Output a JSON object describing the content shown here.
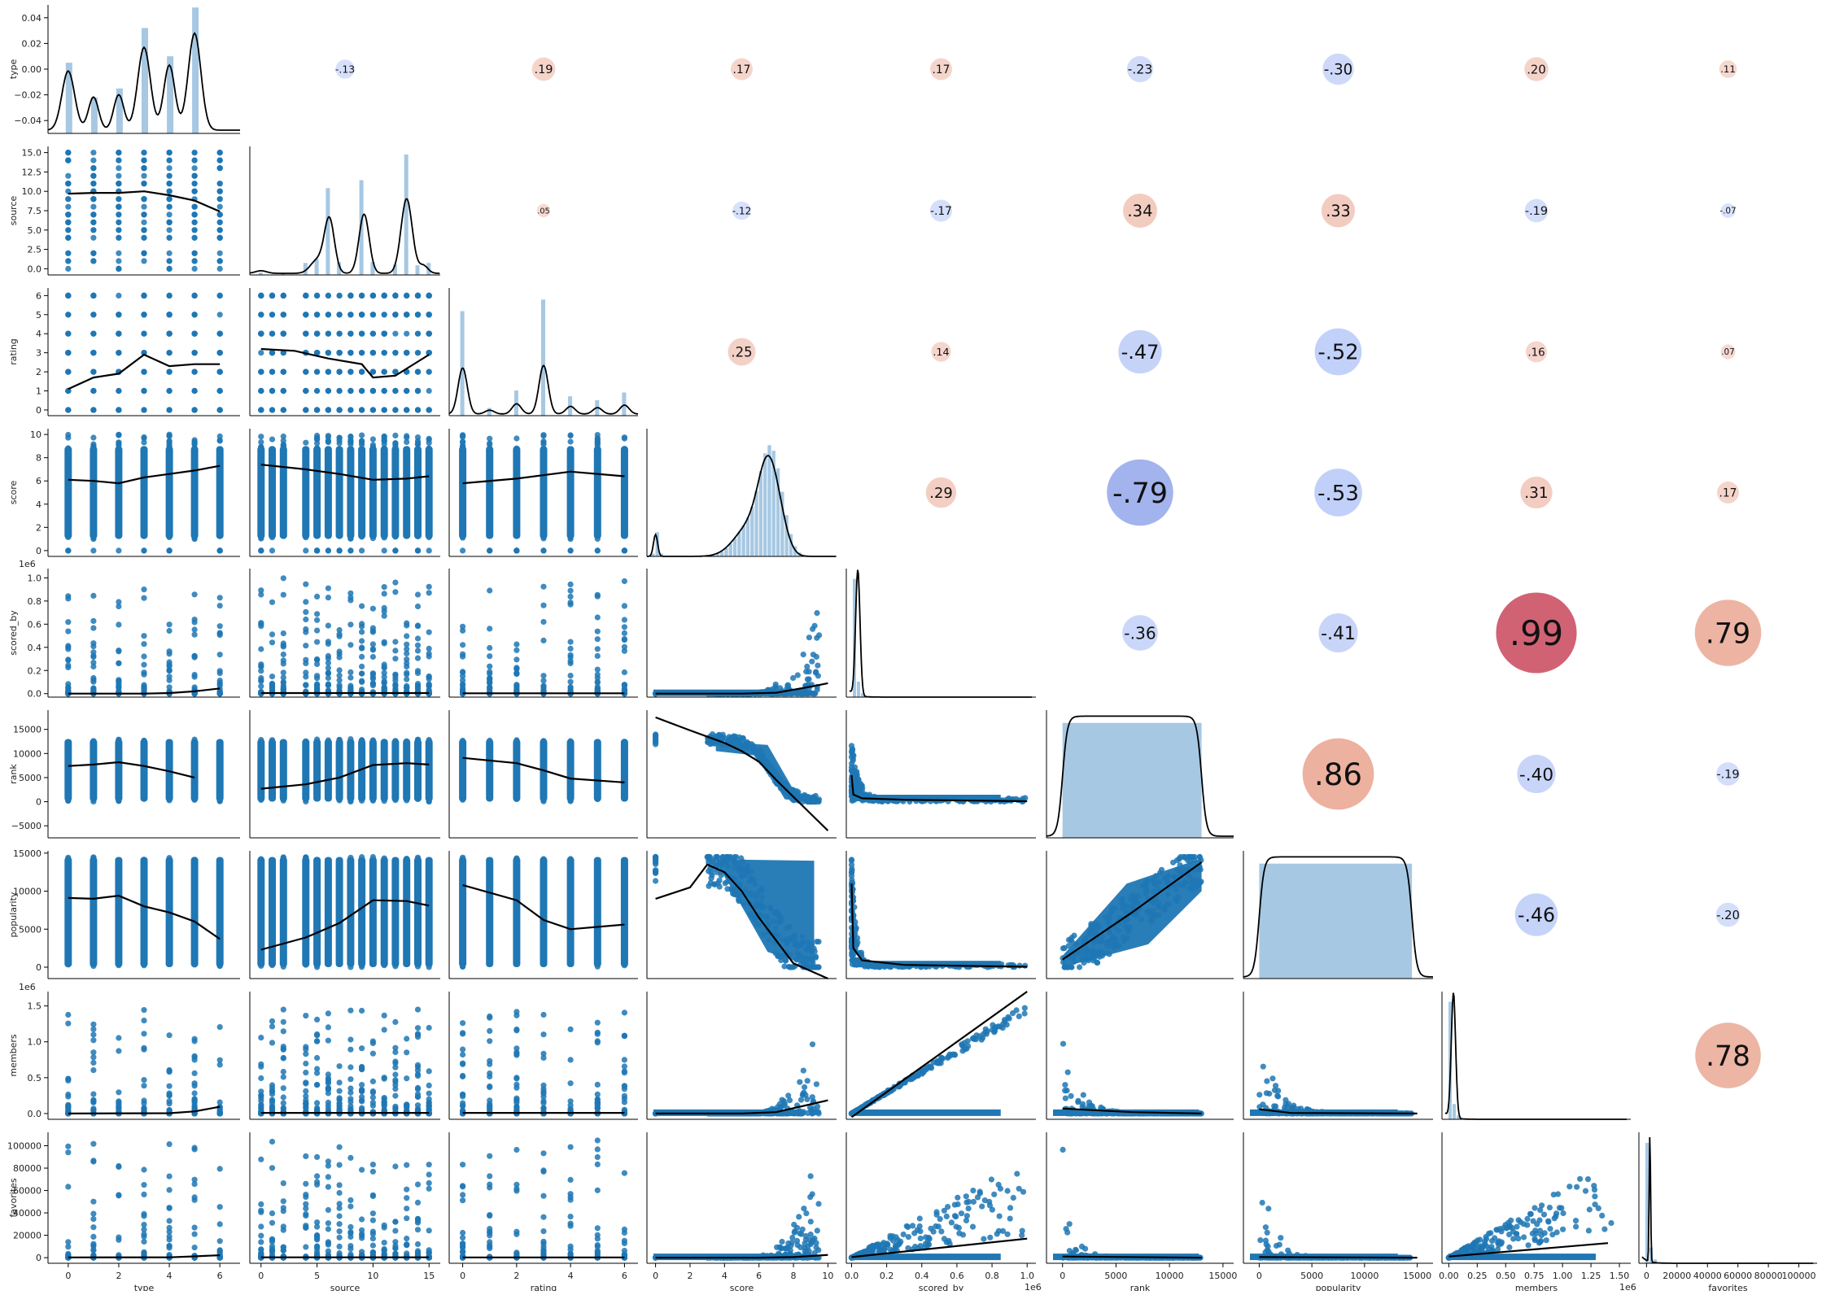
{
  "variables": [
    "type",
    "source",
    "rating",
    "score",
    "scored_by",
    "rank",
    "popularity",
    "members",
    "favorites"
  ],
  "chart_data": {
    "type": "pairplot",
    "diagonal": "histogram with kde",
    "lower": "scatter with lowess line",
    "upper": "correlation circles",
    "colors": {
      "points": "#1f77b4",
      "hist": "#a6c8e3",
      "line": "#000000",
      "positive": "#e8a08a",
      "negative": "#9fb6f5",
      "strong_positive": "#cc4f63",
      "strong_negative": "#8a9ee8"
    },
    "diag_ticks": {
      "type": [
        "0.04",
        "0.02",
        "0.00",
        "−0.02",
        "−0.04"
      ]
    },
    "row_ticks": {
      "source": [
        "15.0",
        "12.5",
        "10.0",
        "7.5",
        "5.0",
        "2.5",
        "0.0"
      ],
      "rating": [
        "6",
        "5",
        "4",
        "3",
        "2",
        "1",
        "0"
      ],
      "score": [
        "10",
        "8",
        "6",
        "4",
        "2",
        "0"
      ],
      "scored_by": [
        "1.0",
        "0.8",
        "0.6",
        "0.4",
        "0.2",
        "0.0"
      ],
      "rank": [
        "15000",
        "10000",
        "5000",
        "0",
        "−5000"
      ],
      "popularity": [
        "15000",
        "10000",
        "5000",
        "0"
      ],
      "members": [
        "1.5",
        "1.0",
        "0.5",
        "0.0"
      ],
      "favorites": [
        "100000",
        "80000",
        "60000",
        "40000",
        "20000",
        "0"
      ]
    },
    "offsets": {
      "scored_by": "1e6",
      "members": "1e6"
    },
    "col_ticks": {
      "type": [
        "0",
        "2",
        "4",
        "6"
      ],
      "source": [
        "0",
        "5",
        "10",
        "15"
      ],
      "rating": [
        "0",
        "2",
        "4",
        "6"
      ],
      "score": [
        "0",
        "2",
        "4",
        "6",
        "8",
        "10"
      ],
      "scored_by": [
        "0.0",
        "0.2",
        "0.4",
        "0.6",
        "0.8",
        "1.0"
      ],
      "rank": [
        "0",
        "5000",
        "10000",
        "15000"
      ],
      "popularity": [
        "0",
        "5000",
        "10000",
        "15000"
      ],
      "members": [
        "0.00",
        "0.25",
        "0.50",
        "0.75",
        "1.00",
        "1.25",
        "1.50"
      ],
      "favorites": [
        "0",
        "20000",
        "40000",
        "60000",
        "80000",
        "100000"
      ]
    },
    "col_offsets": {
      "scored_by": "1e6",
      "members": "1e6"
    },
    "correlations": [
      {
        "row": "type",
        "col": "source",
        "value": -0.13,
        "label": "-.13"
      },
      {
        "row": "type",
        "col": "rating",
        "value": 0.19,
        "label": ".19"
      },
      {
        "row": "type",
        "col": "score",
        "value": 0.17,
        "label": ".17"
      },
      {
        "row": "type",
        "col": "scored_by",
        "value": 0.17,
        "label": ".17"
      },
      {
        "row": "type",
        "col": "rank",
        "value": -0.23,
        "label": "-.23"
      },
      {
        "row": "type",
        "col": "popularity",
        "value": -0.3,
        "label": "-.30"
      },
      {
        "row": "type",
        "col": "members",
        "value": 0.2,
        "label": ".20"
      },
      {
        "row": "type",
        "col": "favorites",
        "value": 0.11,
        "label": ".11"
      },
      {
        "row": "source",
        "col": "rating",
        "value": 0.05,
        "label": ".05"
      },
      {
        "row": "source",
        "col": "score",
        "value": -0.12,
        "label": "-.12"
      },
      {
        "row": "source",
        "col": "scored_by",
        "value": -0.17,
        "label": "-.17"
      },
      {
        "row": "source",
        "col": "rank",
        "value": 0.34,
        "label": ".34"
      },
      {
        "row": "source",
        "col": "popularity",
        "value": 0.33,
        "label": ".33"
      },
      {
        "row": "source",
        "col": "members",
        "value": -0.19,
        "label": "-.19"
      },
      {
        "row": "source",
        "col": "favorites",
        "value": -0.07,
        "label": "-.07"
      },
      {
        "row": "rating",
        "col": "score",
        "value": 0.25,
        "label": ".25"
      },
      {
        "row": "rating",
        "col": "scored_by",
        "value": 0.14,
        "label": ".14"
      },
      {
        "row": "rating",
        "col": "rank",
        "value": -0.47,
        "label": "-.47"
      },
      {
        "row": "rating",
        "col": "popularity",
        "value": -0.52,
        "label": "-.52"
      },
      {
        "row": "rating",
        "col": "members",
        "value": 0.16,
        "label": ".16"
      },
      {
        "row": "rating",
        "col": "favorites",
        "value": 0.07,
        "label": ".07"
      },
      {
        "row": "score",
        "col": "scored_by",
        "value": 0.29,
        "label": ".29"
      },
      {
        "row": "score",
        "col": "rank",
        "value": -0.79,
        "label": "-.79"
      },
      {
        "row": "score",
        "col": "popularity",
        "value": -0.53,
        "label": "-.53"
      },
      {
        "row": "score",
        "col": "members",
        "value": 0.31,
        "label": ".31"
      },
      {
        "row": "score",
        "col": "favorites",
        "value": 0.17,
        "label": ".17"
      },
      {
        "row": "scored_by",
        "col": "rank",
        "value": -0.36,
        "label": "-.36"
      },
      {
        "row": "scored_by",
        "col": "popularity",
        "value": -0.41,
        "label": "-.41"
      },
      {
        "row": "scored_by",
        "col": "members",
        "value": 0.99,
        "label": ".99"
      },
      {
        "row": "scored_by",
        "col": "favorites",
        "value": 0.79,
        "label": ".79"
      },
      {
        "row": "rank",
        "col": "popularity",
        "value": 0.86,
        "label": ".86"
      },
      {
        "row": "rank",
        "col": "members",
        "value": -0.4,
        "label": "-.40"
      },
      {
        "row": "rank",
        "col": "favorites",
        "value": -0.19,
        "label": "-.19"
      },
      {
        "row": "popularity",
        "col": "members",
        "value": -0.46,
        "label": "-.46"
      },
      {
        "row": "popularity",
        "col": "favorites",
        "value": -0.2,
        "label": "-.20"
      },
      {
        "row": "members",
        "col": "favorites",
        "value": 0.78,
        "label": ".78"
      }
    ],
    "ranges": {
      "type": [
        -0.8,
        6.8
      ],
      "source": [
        -1,
        16
      ],
      "rating": [
        -0.5,
        6.5
      ],
      "score": [
        -0.5,
        10.5
      ],
      "scored_by": [
        -30000,
        1050000
      ],
      "rank": [
        -1500,
        16000
      ],
      "popularity": [
        -1500,
        16500
      ],
      "members": [
        -60000,
        1600000
      ],
      "favorites": [
        -5000,
        112000
      ]
    },
    "row_ranges": {
      "type": [
        -0.05,
        0.05
      ],
      "source": [
        -0.8,
        15.8
      ],
      "rating": [
        -0.3,
        6.4
      ],
      "score": [
        -0.5,
        10.5
      ],
      "scored_by": [
        -30000,
        1080000
      ],
      "rank": [
        -7500,
        19000
      ],
      "popularity": [
        -1500,
        15300
      ],
      "members": [
        -80000,
        1700000
      ],
      "favorites": [
        -5000,
        112000
      ]
    },
    "category_levels": {
      "type": [
        0,
        1,
        2,
        3,
        4,
        5,
        6
      ],
      "source": [
        0,
        1,
        2,
        4,
        5,
        6,
        7,
        8,
        9,
        10,
        11,
        12,
        13,
        14,
        15
      ],
      "rating": [
        0,
        1,
        2,
        3,
        4,
        5,
        6
      ]
    },
    "diag_hist": {
      "type": {
        "bins": [
          0,
          1,
          2,
          3,
          4,
          5,
          6
        ],
        "density": [
          0.009,
          -0.034,
          -0.027,
          0.034,
          -0.006,
          0.05,
          -0.05
        ]
      },
      "source": {
        "bins": [
          0,
          2,
          4,
          5,
          6,
          7,
          9,
          10,
          12,
          13,
          14,
          15
        ],
        "density": [
          0.3,
          0.2,
          1.5,
          2.0,
          10.8,
          1.6,
          11.8,
          1.6,
          1.3,
          15.0,
          1.2,
          1.5
        ]
      },
      "rating": {
        "bins": [
          0,
          1,
          2,
          3,
          4,
          5,
          6
        ],
        "density": [
          5.4,
          0.4,
          1.3,
          6.0,
          1.0,
          0.8,
          1.2
        ]
      }
    },
    "lowess": {
      "type|source": [
        [
          0,
          9.7
        ],
        [
          1,
          9.8
        ],
        [
          2,
          9.8
        ],
        [
          3,
          10.0
        ],
        [
          4,
          9.5
        ],
        [
          5,
          8.8
        ],
        [
          6,
          7.4
        ]
      ],
      "type|rating": [
        [
          0,
          1.1
        ],
        [
          1,
          1.7
        ],
        [
          2,
          1.9
        ],
        [
          3,
          2.9
        ],
        [
          4,
          2.3
        ],
        [
          5,
          2.4
        ],
        [
          6,
          2.4
        ]
      ],
      "type|score": [
        [
          0,
          6.1
        ],
        [
          1,
          6.0
        ],
        [
          2,
          5.8
        ],
        [
          3,
          6.3
        ],
        [
          4,
          6.6
        ],
        [
          5,
          6.9
        ],
        [
          6,
          7.3
        ]
      ],
      "type|scored_by": [
        [
          0,
          0
        ],
        [
          3,
          0
        ],
        [
          4,
          5000
        ],
        [
          5,
          20000
        ],
        [
          6,
          45000
        ]
      ],
      "type|rank": [
        [
          0,
          7400
        ],
        [
          1,
          7700
        ],
        [
          2,
          8200
        ],
        [
          3,
          7400
        ],
        [
          4,
          6300
        ],
        [
          5,
          5000
        ]
      ],
      "type|popularity": [
        [
          0,
          9100
        ],
        [
          1,
          9000
        ],
        [
          2,
          9400
        ],
        [
          3,
          8000
        ],
        [
          4,
          7200
        ],
        [
          5,
          6000
        ],
        [
          6,
          3700
        ]
      ],
      "type|members": [
        [
          0,
          0
        ],
        [
          4,
          5000
        ],
        [
          5,
          30000
        ],
        [
          6,
          95000
        ]
      ],
      "type|favorites": [
        [
          0,
          200
        ],
        [
          4,
          300
        ],
        [
          5,
          1200
        ],
        [
          6,
          2200
        ]
      ],
      "source|rating": [
        [
          0,
          3.2
        ],
        [
          3,
          3.1
        ],
        [
          6,
          2.7
        ],
        [
          9,
          2.4
        ],
        [
          10,
          1.7
        ],
        [
          12,
          1.8
        ],
        [
          15,
          2.9
        ]
      ],
      "source|score": [
        [
          0,
          7.4
        ],
        [
          4,
          7.0
        ],
        [
          7,
          6.6
        ],
        [
          10,
          6.1
        ],
        [
          13,
          6.2
        ],
        [
          15,
          6.4
        ]
      ],
      "source|scored_by": [
        [
          0,
          5000
        ],
        [
          15,
          5000
        ]
      ],
      "source|rank": [
        [
          0,
          2700
        ],
        [
          4,
          3600
        ],
        [
          7,
          5000
        ],
        [
          10,
          7600
        ],
        [
          13,
          8000
        ],
        [
          15,
          7700
        ]
      ],
      "source|popularity": [
        [
          0,
          2300
        ],
        [
          4,
          3900
        ],
        [
          7,
          5800
        ],
        [
          10,
          8800
        ],
        [
          13,
          8700
        ],
        [
          15,
          8100
        ]
      ],
      "source|members": [
        [
          0,
          10000
        ],
        [
          15,
          10000
        ]
      ],
      "source|favorites": [
        [
          0,
          300
        ],
        [
          15,
          300
        ]
      ],
      "rating|score": [
        [
          0,
          5.8
        ],
        [
          2,
          6.2
        ],
        [
          4,
          6.8
        ],
        [
          6,
          6.4
        ]
      ],
      "rating|scored_by": [
        [
          0,
          3000
        ],
        [
          6,
          3000
        ]
      ],
      "rating|rank": [
        [
          0,
          9100
        ],
        [
          2,
          8000
        ],
        [
          3,
          6500
        ],
        [
          4,
          4800
        ],
        [
          6,
          4000
        ]
      ],
      "rating|popularity": [
        [
          0,
          10800
        ],
        [
          2,
          8800
        ],
        [
          3,
          6200
        ],
        [
          4,
          5000
        ],
        [
          6,
          5600
        ]
      ],
      "rating|members": [
        [
          0,
          10000
        ],
        [
          6,
          10000
        ]
      ],
      "rating|favorites": [
        [
          0,
          200
        ],
        [
          6,
          200
        ]
      ],
      "score|scored_by": [
        [
          0,
          0
        ],
        [
          5,
          0
        ],
        [
          7,
          8000
        ],
        [
          9,
          60000
        ],
        [
          10,
          90000
        ]
      ],
      "score|rank": [
        [
          0,
          17500
        ],
        [
          2,
          14800
        ],
        [
          4,
          12200
        ],
        [
          5,
          10500
        ],
        [
          6,
          8300
        ],
        [
          7,
          4500
        ],
        [
          8,
          1000
        ],
        [
          9,
          -2500
        ],
        [
          10,
          -6000
        ]
      ],
      "score|popularity": [
        [
          0,
          9000
        ],
        [
          2,
          10500
        ],
        [
          3,
          13500
        ],
        [
          4,
          12500
        ],
        [
          5,
          10000
        ],
        [
          6,
          6500
        ],
        [
          7,
          3500
        ],
        [
          8,
          500
        ],
        [
          10,
          -4500
        ]
      ],
      "score|members": [
        [
          0,
          0
        ],
        [
          5,
          0
        ],
        [
          7,
          20000
        ],
        [
          9,
          130000
        ],
        [
          10,
          185000
        ]
      ],
      "score|favorites": [
        [
          0,
          0
        ],
        [
          6,
          0
        ],
        [
          8,
          500
        ],
        [
          10,
          2500
        ]
      ],
      "scored_by|rank": [
        [
          0,
          5500
        ],
        [
          10000,
          1500
        ],
        [
          60000,
          700
        ],
        [
          300000,
          400
        ],
        [
          1000000,
          100
        ]
      ],
      "scored_by|popularity": [
        [
          0,
          11000
        ],
        [
          10000,
          2500
        ],
        [
          60000,
          900
        ],
        [
          300000,
          300
        ],
        [
          1000000,
          50
        ]
      ],
      "scored_by|members": [
        [
          0,
          -50000
        ],
        [
          1000000,
          1800000
        ]
      ],
      "scored_by|favorites": [
        [
          0,
          500
        ],
        [
          1000000,
          17000
        ]
      ],
      "rank|popularity": [
        [
          0,
          1000
        ],
        [
          6500,
          7200
        ],
        [
          13000,
          13800
        ]
      ],
      "rank|members": [
        [
          0,
          70000
        ],
        [
          6500,
          20000
        ],
        [
          13000,
          0
        ]
      ],
      "rank|favorites": [
        [
          0,
          1000
        ],
        [
          13000,
          0
        ]
      ],
      "popularity|members": [
        [
          0,
          60000
        ],
        [
          3000,
          8000
        ],
        [
          15000,
          0
        ]
      ],
      "popularity|favorites": [
        [
          0,
          500
        ],
        [
          15000,
          0
        ]
      ],
      "members|favorites": [
        [
          0,
          1000
        ],
        [
          1400000,
          13000
        ]
      ]
    }
  }
}
